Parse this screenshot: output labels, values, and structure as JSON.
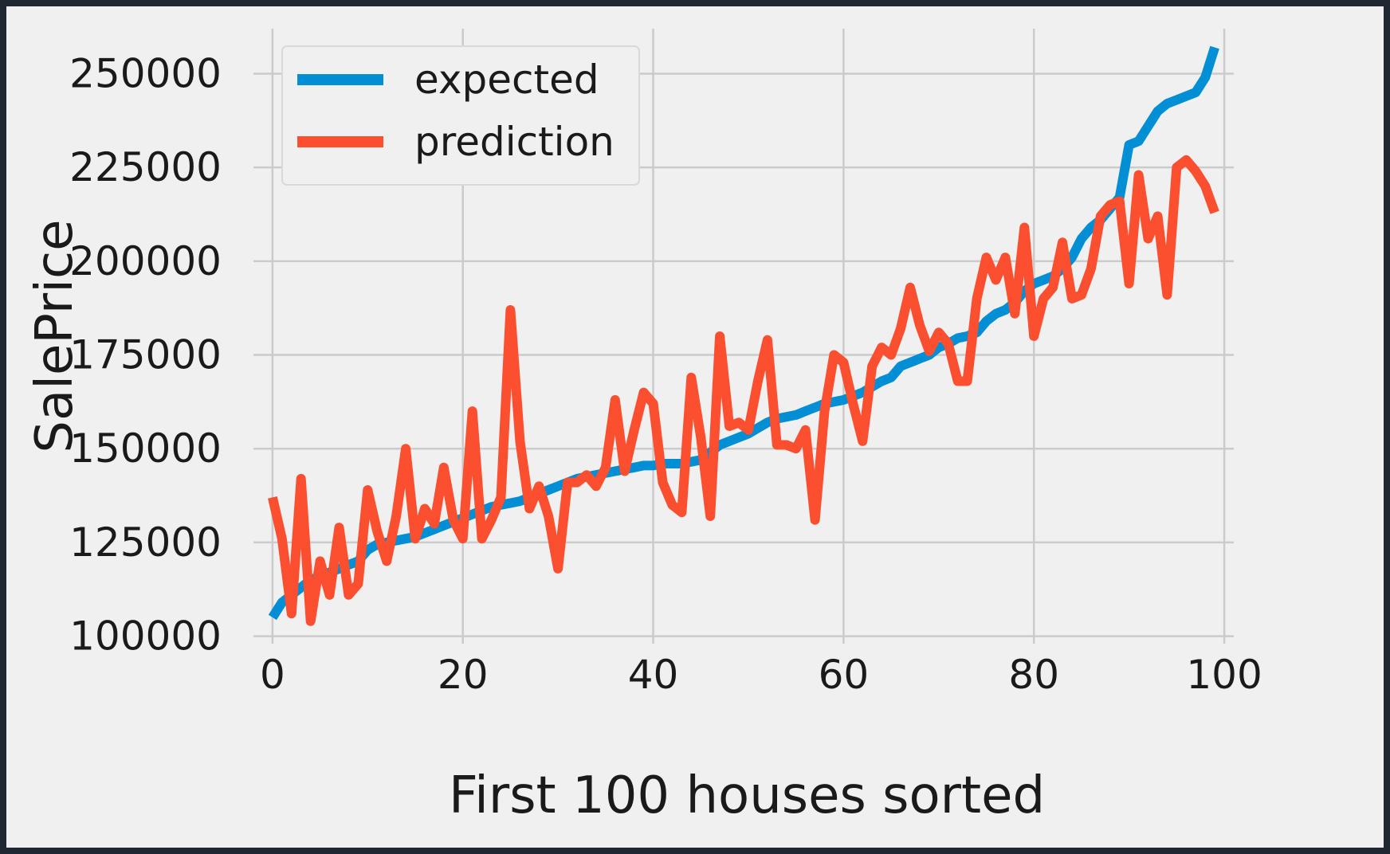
{
  "chart_data": {
    "type": "line",
    "title": "",
    "xlabel": "First 100 houses sorted",
    "ylabel": "SalePrice",
    "xlim": [
      -2,
      101
    ],
    "ylim": [
      98000,
      262000
    ],
    "xticks": [
      0,
      20,
      40,
      60,
      80,
      100
    ],
    "yticks": [
      100000,
      125000,
      150000,
      175000,
      200000,
      225000,
      250000
    ],
    "xtick_labels": [
      "0",
      "20",
      "40",
      "60",
      "80",
      "100"
    ],
    "ytick_labels": [
      "100000",
      "125000",
      "150000",
      "175000",
      "200000",
      "225000",
      "250000"
    ],
    "grid": true,
    "legend_position": "upper-left",
    "series": [
      {
        "name": "expected",
        "color": "#008fd5",
        "x": [
          0,
          1,
          2,
          3,
          4,
          5,
          6,
          7,
          8,
          9,
          10,
          11,
          12,
          13,
          14,
          15,
          16,
          17,
          18,
          19,
          20,
          21,
          22,
          23,
          24,
          25,
          26,
          27,
          28,
          29,
          30,
          31,
          32,
          33,
          34,
          35,
          36,
          37,
          38,
          39,
          40,
          41,
          42,
          43,
          44,
          45,
          46,
          47,
          48,
          49,
          50,
          51,
          52,
          53,
          54,
          55,
          56,
          57,
          58,
          59,
          60,
          61,
          62,
          63,
          64,
          65,
          66,
          67,
          68,
          69,
          70,
          71,
          72,
          73,
          74,
          75,
          76,
          77,
          78,
          79,
          80,
          81,
          82,
          83,
          84,
          85,
          86,
          87,
          88,
          89,
          90,
          91,
          92,
          93,
          94,
          95,
          96,
          97,
          98,
          99
        ],
        "y": [
          105000,
          109000,
          111000,
          113000,
          115000,
          116000,
          117000,
          118000,
          119000,
          120000,
          123000,
          124500,
          125000,
          125500,
          126000,
          126500,
          127500,
          128500,
          129500,
          130500,
          131500,
          132500,
          133500,
          134500,
          135000,
          135500,
          136000,
          137000,
          138000,
          139000,
          140000,
          141000,
          142000,
          142500,
          143000,
          143500,
          144000,
          144500,
          145000,
          145500,
          145500,
          146000,
          146000,
          146000,
          146500,
          147000,
          149000,
          151000,
          152000,
          153000,
          154000,
          155500,
          157000,
          158000,
          158500,
          159000,
          160000,
          161000,
          162000,
          162500,
          163000,
          164000,
          165000,
          166500,
          168000,
          169000,
          172000,
          173000,
          174000,
          175000,
          177000,
          178000,
          179500,
          180000,
          181000,
          184000,
          186000,
          187000,
          189000,
          192000,
          194000,
          195000,
          196000,
          198000,
          201000,
          206000,
          209000,
          211000,
          214000,
          217000,
          231000,
          232000,
          236000,
          240000,
          242000,
          243000,
          244000,
          245000,
          249000,
          257000
        ]
      },
      {
        "name": "prediction",
        "color": "#fc4f30",
        "x": [
          0,
          1,
          2,
          3,
          4,
          5,
          6,
          7,
          8,
          9,
          10,
          11,
          12,
          13,
          14,
          15,
          16,
          17,
          18,
          19,
          20,
          21,
          22,
          23,
          24,
          25,
          26,
          27,
          28,
          29,
          30,
          31,
          32,
          33,
          34,
          35,
          36,
          37,
          38,
          39,
          40,
          41,
          42,
          43,
          44,
          45,
          46,
          47,
          48,
          49,
          50,
          51,
          52,
          53,
          54,
          55,
          56,
          57,
          58,
          59,
          60,
          61,
          62,
          63,
          64,
          65,
          66,
          67,
          68,
          69,
          70,
          71,
          72,
          73,
          74,
          75,
          76,
          77,
          78,
          79,
          80,
          81,
          82,
          83,
          84,
          85,
          86,
          87,
          88,
          89,
          90,
          91,
          92,
          93,
          94,
          95,
          96,
          97,
          98,
          99
        ],
        "y": [
          137000,
          126000,
          106000,
          142000,
          104000,
          120000,
          111000,
          129000,
          111000,
          114000,
          139000,
          128000,
          120000,
          132000,
          150000,
          126000,
          134000,
          130000,
          145000,
          131000,
          126000,
          160000,
          126000,
          131000,
          137000,
          187000,
          152000,
          134000,
          140000,
          132000,
          118000,
          141000,
          141000,
          143000,
          140000,
          145000,
          163000,
          144000,
          155000,
          165000,
          162000,
          141000,
          135000,
          133000,
          169000,
          153000,
          132000,
          180000,
          156000,
          157000,
          155000,
          168000,
          179000,
          151000,
          151000,
          150000,
          155000,
          131000,
          160000,
          175000,
          173000,
          162000,
          152000,
          172000,
          177000,
          175000,
          182000,
          193000,
          183000,
          176000,
          181000,
          178000,
          168000,
          168000,
          190000,
          201000,
          195000,
          201000,
          186000,
          209000,
          180000,
          190000,
          193000,
          205000,
          190000,
          191000,
          198000,
          212000,
          215000,
          216000,
          194000,
          223000,
          206000,
          212000,
          191000,
          225000,
          227000,
          224000,
          220000,
          213000
        ]
      }
    ]
  }
}
